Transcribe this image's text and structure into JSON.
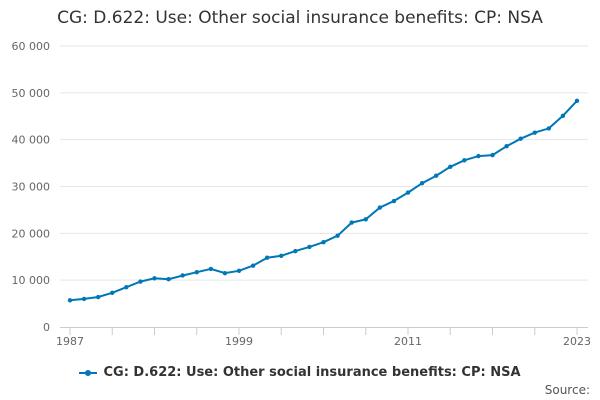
{
  "colors": {
    "series": "#0077b6",
    "grid": "#e6e6e6",
    "axis": "#cccccc",
    "text": "#333333"
  },
  "source_label": "Source:",
  "chart_data": {
    "type": "line",
    "title": "CG: D.622: Use: Other social insurance benefits: CP: NSA",
    "xlabel": "",
    "ylabel": "",
    "xlim": [
      1987,
      2023
    ],
    "ylim": [
      0,
      60000
    ],
    "y_ticks": [
      0,
      10000,
      20000,
      30000,
      40000,
      50000,
      60000
    ],
    "y_tick_labels": [
      "0",
      "10 000",
      "20 000",
      "30 000",
      "40 000",
      "50 000",
      "60 000"
    ],
    "x_tick_labels": [
      "1987",
      "1999",
      "2011",
      "2023"
    ],
    "x_tick_values": [
      1987,
      1999,
      2011,
      2023
    ],
    "grid": true,
    "legend_position": "bottom",
    "series": [
      {
        "name": "CG: D.622: Use: Other social insurance benefits: CP: NSA",
        "x": [
          1987,
          1988,
          1989,
          1990,
          1991,
          1992,
          1993,
          1994,
          1995,
          1996,
          1997,
          1998,
          1999,
          2000,
          2001,
          2002,
          2003,
          2004,
          2005,
          2006,
          2007,
          2008,
          2009,
          2010,
          2011,
          2012,
          2013,
          2014,
          2015,
          2016,
          2017,
          2018,
          2019,
          2020,
          2021,
          2022,
          2023
        ],
        "values": [
          5700,
          6000,
          6400,
          7300,
          8500,
          9700,
          10400,
          10200,
          11000,
          11700,
          12400,
          11500,
          12000,
          13100,
          14800,
          15200,
          16200,
          17100,
          18100,
          19500,
          22300,
          23000,
          25500,
          26900,
          28700,
          30700,
          32300,
          34200,
          35600,
          36500,
          36700,
          38600,
          40200,
          41500,
          42400,
          45100,
          48300
        ]
      }
    ]
  }
}
